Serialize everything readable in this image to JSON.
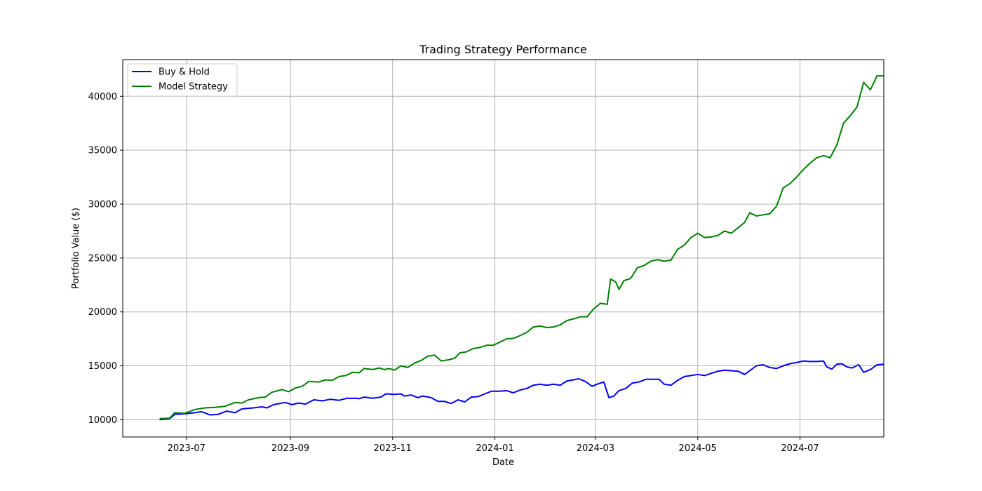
{
  "chart_data": {
    "type": "line",
    "title": "Trading Strategy Performance",
    "xlabel": "Date",
    "ylabel": "Portfolio Value ($)",
    "x_ticks": [
      "2023-07",
      "2023-09",
      "2023-11",
      "2024-01",
      "2024-03",
      "2024-05",
      "2024-07"
    ],
    "y_ticks": [
      "10000",
      "15000",
      "20000",
      "25000",
      "30000",
      "35000",
      "40000"
    ],
    "xlim": [
      "2023-05-24",
      "2024-08-20"
    ],
    "ylim": [
      8400,
      43400
    ],
    "grid": true,
    "legend_position": "top-left",
    "series": [
      {
        "name": "Buy & Hold",
        "color": "#0000ff",
        "points": [
          [
            "2023-06-15",
            10000
          ],
          [
            "2023-06-21",
            10100
          ],
          [
            "2023-06-24",
            10500
          ],
          [
            "2023-06-30",
            10550
          ],
          [
            "2023-07-06",
            10650
          ],
          [
            "2023-07-10",
            10750
          ],
          [
            "2023-07-15",
            10450
          ],
          [
            "2023-07-20",
            10500
          ],
          [
            "2023-07-25",
            10800
          ],
          [
            "2023-07-30",
            10650
          ],
          [
            "2023-08-03",
            11000
          ],
          [
            "2023-08-10",
            11100
          ],
          [
            "2023-08-15",
            11200
          ],
          [
            "2023-08-18",
            11100
          ],
          [
            "2023-08-22",
            11400
          ],
          [
            "2023-08-29",
            11600
          ],
          [
            "2023-09-02",
            11400
          ],
          [
            "2023-09-06",
            11550
          ],
          [
            "2023-09-10",
            11450
          ],
          [
            "2023-09-15",
            11850
          ],
          [
            "2023-09-20",
            11750
          ],
          [
            "2023-09-25",
            11900
          ],
          [
            "2023-09-30",
            11800
          ],
          [
            "2023-10-05",
            12000
          ],
          [
            "2023-10-10",
            12000
          ],
          [
            "2023-10-12",
            11950
          ],
          [
            "2023-10-15",
            12100
          ],
          [
            "2023-10-20",
            12000
          ],
          [
            "2023-10-25",
            12100
          ],
          [
            "2023-10-28",
            12400
          ],
          [
            "2023-11-02",
            12350
          ],
          [
            "2023-11-06",
            12400
          ],
          [
            "2023-11-08",
            12200
          ],
          [
            "2023-11-12",
            12300
          ],
          [
            "2023-11-16",
            12050
          ],
          [
            "2023-11-19",
            12200
          ],
          [
            "2023-11-24",
            12050
          ],
          [
            "2023-11-28",
            11700
          ],
          [
            "2023-12-02",
            11700
          ],
          [
            "2023-12-06",
            11500
          ],
          [
            "2023-12-10",
            11850
          ],
          [
            "2023-12-14",
            11650
          ],
          [
            "2023-12-18",
            12100
          ],
          [
            "2023-12-22",
            12150
          ],
          [
            "2023-12-26",
            12400
          ],
          [
            "2023-12-30",
            12650
          ],
          [
            "2024-01-04",
            12650
          ],
          [
            "2024-01-08",
            12700
          ],
          [
            "2024-01-12",
            12500
          ],
          [
            "2024-01-16",
            12750
          ],
          [
            "2024-01-20",
            12900
          ],
          [
            "2024-01-24",
            13200
          ],
          [
            "2024-01-28",
            13300
          ],
          [
            "2024-02-01",
            13200
          ],
          [
            "2024-02-05",
            13300
          ],
          [
            "2024-02-09",
            13200
          ],
          [
            "2024-02-13",
            13600
          ],
          [
            "2024-02-17",
            13700
          ],
          [
            "2024-02-20",
            13800
          ],
          [
            "2024-02-24",
            13550
          ],
          [
            "2024-02-28",
            13100
          ],
          [
            "2024-03-02",
            13300
          ],
          [
            "2024-03-06",
            13500
          ],
          [
            "2024-03-09",
            12050
          ],
          [
            "2024-03-12",
            12200
          ],
          [
            "2024-03-15",
            12700
          ],
          [
            "2024-03-19",
            12900
          ],
          [
            "2024-03-23",
            13400
          ],
          [
            "2024-03-27",
            13500
          ],
          [
            "2024-03-31",
            13750
          ],
          [
            "2024-04-03",
            13750
          ],
          [
            "2024-04-08",
            13750
          ],
          [
            "2024-04-11",
            13300
          ],
          [
            "2024-04-15",
            13200
          ],
          [
            "2024-04-19",
            13650
          ],
          [
            "2024-04-23",
            14000
          ],
          [
            "2024-04-27",
            14100
          ],
          [
            "2024-05-01",
            14200
          ],
          [
            "2024-05-05",
            14100
          ],
          [
            "2024-05-09",
            14300
          ],
          [
            "2024-05-13",
            14500
          ],
          [
            "2024-05-17",
            14600
          ],
          [
            "2024-05-21",
            14550
          ],
          [
            "2024-05-25",
            14500
          ],
          [
            "2024-05-29",
            14200
          ],
          [
            "2024-06-01",
            14550
          ],
          [
            "2024-06-05",
            15000
          ],
          [
            "2024-06-09",
            15100
          ],
          [
            "2024-06-13",
            14850
          ],
          [
            "2024-06-17",
            14750
          ],
          [
            "2024-06-21",
            15000
          ],
          [
            "2024-06-25",
            15200
          ],
          [
            "2024-06-29",
            15300
          ],
          [
            "2024-07-03",
            15450
          ],
          [
            "2024-07-07",
            15400
          ],
          [
            "2024-07-11",
            15400
          ],
          [
            "2024-07-15",
            15450
          ],
          [
            "2024-07-17",
            14900
          ],
          [
            "2024-07-20",
            14700
          ],
          [
            "2024-07-23",
            15150
          ],
          [
            "2024-07-26",
            15200
          ],
          [
            "2024-07-29",
            14900
          ],
          [
            "2024-08-01",
            14800
          ],
          [
            "2024-08-05",
            15100
          ],
          [
            "2024-08-08",
            14400
          ],
          [
            "2024-08-12",
            14650
          ],
          [
            "2024-08-16",
            15100
          ],
          [
            "2024-08-20",
            15150
          ]
        ]
      },
      {
        "name": "Model Strategy",
        "color": "#008000",
        "points": [
          [
            "2023-06-15",
            10100
          ],
          [
            "2023-06-21",
            10150
          ],
          [
            "2023-06-24",
            10650
          ],
          [
            "2023-06-30",
            10600
          ],
          [
            "2023-07-06",
            10950
          ],
          [
            "2023-07-12",
            11100
          ],
          [
            "2023-07-18",
            11150
          ],
          [
            "2023-07-24",
            11250
          ],
          [
            "2023-07-30",
            11600
          ],
          [
            "2023-08-03",
            11550
          ],
          [
            "2023-08-07",
            11850
          ],
          [
            "2023-08-13",
            12050
          ],
          [
            "2023-08-17",
            12100
          ],
          [
            "2023-08-21",
            12550
          ],
          [
            "2023-08-27",
            12800
          ],
          [
            "2023-08-31",
            12600
          ],
          [
            "2023-09-04",
            12950
          ],
          [
            "2023-09-08",
            13100
          ],
          [
            "2023-09-12",
            13550
          ],
          [
            "2023-09-18",
            13500
          ],
          [
            "2023-09-22",
            13700
          ],
          [
            "2023-09-26",
            13650
          ],
          [
            "2023-09-30",
            14000
          ],
          [
            "2023-10-04",
            14100
          ],
          [
            "2023-10-08",
            14400
          ],
          [
            "2023-10-12",
            14350
          ],
          [
            "2023-10-15",
            14750
          ],
          [
            "2023-10-20",
            14650
          ],
          [
            "2023-10-24",
            14800
          ],
          [
            "2023-10-27",
            14650
          ],
          [
            "2023-10-30",
            14750
          ],
          [
            "2023-11-02",
            14600
          ],
          [
            "2023-11-06",
            15000
          ],
          [
            "2023-11-10",
            14850
          ],
          [
            "2023-11-14",
            15250
          ],
          [
            "2023-11-18",
            15500
          ],
          [
            "2023-11-22",
            15900
          ],
          [
            "2023-11-26",
            16000
          ],
          [
            "2023-11-30",
            15450
          ],
          [
            "2023-12-04",
            15550
          ],
          [
            "2023-12-08",
            15700
          ],
          [
            "2023-12-11",
            16200
          ],
          [
            "2023-12-15",
            16300
          ],
          [
            "2023-12-19",
            16600
          ],
          [
            "2023-12-23",
            16700
          ],
          [
            "2023-12-27",
            16900
          ],
          [
            "2023-12-31",
            16900
          ],
          [
            "2024-01-04",
            17200
          ],
          [
            "2024-01-08",
            17500
          ],
          [
            "2024-01-12",
            17550
          ],
          [
            "2024-01-16",
            17800
          ],
          [
            "2024-01-20",
            18100
          ],
          [
            "2024-01-24",
            18600
          ],
          [
            "2024-01-28",
            18700
          ],
          [
            "2024-02-01",
            18550
          ],
          [
            "2024-02-05",
            18600
          ],
          [
            "2024-02-09",
            18800
          ],
          [
            "2024-02-13",
            19200
          ],
          [
            "2024-02-17",
            19350
          ],
          [
            "2024-02-21",
            19550
          ],
          [
            "2024-02-25",
            19550
          ],
          [
            "2024-02-29",
            20300
          ],
          [
            "2024-03-04",
            20800
          ],
          [
            "2024-03-08",
            20700
          ],
          [
            "2024-03-10",
            23050
          ],
          [
            "2024-03-13",
            22800
          ],
          [
            "2024-03-15",
            22100
          ],
          [
            "2024-03-18",
            22900
          ],
          [
            "2024-03-22",
            23100
          ],
          [
            "2024-03-26",
            24100
          ],
          [
            "2024-03-30",
            24300
          ],
          [
            "2024-04-03",
            24700
          ],
          [
            "2024-04-07",
            24850
          ],
          [
            "2024-04-11",
            24700
          ],
          [
            "2024-04-15",
            24800
          ],
          [
            "2024-04-19",
            25800
          ],
          [
            "2024-04-23",
            26200
          ],
          [
            "2024-04-27",
            26900
          ],
          [
            "2024-05-01",
            27300
          ],
          [
            "2024-05-05",
            26900
          ],
          [
            "2024-05-09",
            26950
          ],
          [
            "2024-05-13",
            27100
          ],
          [
            "2024-05-17",
            27500
          ],
          [
            "2024-05-21",
            27300
          ],
          [
            "2024-05-25",
            27800
          ],
          [
            "2024-05-29",
            28300
          ],
          [
            "2024-06-01",
            29200
          ],
          [
            "2024-06-05",
            28900
          ],
          [
            "2024-06-09",
            29000
          ],
          [
            "2024-06-13",
            29100
          ],
          [
            "2024-06-17",
            29800
          ],
          [
            "2024-06-21",
            31500
          ],
          [
            "2024-06-25",
            31900
          ],
          [
            "2024-06-29",
            32500
          ],
          [
            "2024-07-03",
            33200
          ],
          [
            "2024-07-07",
            33800
          ],
          [
            "2024-07-11",
            34300
          ],
          [
            "2024-07-15",
            34500
          ],
          [
            "2024-07-19",
            34300
          ],
          [
            "2024-07-23",
            35500
          ],
          [
            "2024-07-27",
            37500
          ],
          [
            "2024-07-31",
            38200
          ],
          [
            "2024-08-04",
            39000
          ],
          [
            "2024-08-08",
            41300
          ],
          [
            "2024-08-12",
            40600
          ],
          [
            "2024-08-16",
            41900
          ],
          [
            "2024-08-20",
            41900
          ]
        ]
      }
    ]
  }
}
